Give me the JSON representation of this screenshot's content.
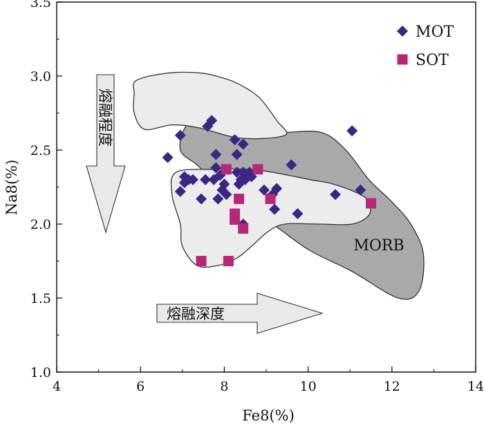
{
  "chart_data": {
    "type": "scatter",
    "title": "",
    "xlabel": "Fe8(%)",
    "ylabel": "Na8(%)",
    "xlim": [
      4,
      14
    ],
    "ylim": [
      1.0,
      3.5
    ],
    "xticks": [
      "4",
      "6",
      "8",
      "10",
      "12",
      "14"
    ],
    "yticks": [
      "1.0",
      "1.5",
      "2.0",
      "2.5",
      "3.0",
      "3.5"
    ],
    "grid": false,
    "legend_position": "top-right",
    "series": [
      {
        "name": "MOT",
        "marker": "diamond",
        "color": "#3b2585",
        "points": [
          [
            6.65,
            2.45
          ],
          [
            6.95,
            2.6
          ],
          [
            6.95,
            2.22
          ],
          [
            7.05,
            2.32
          ],
          [
            7.05,
            2.28
          ],
          [
            7.15,
            2.3
          ],
          [
            7.25,
            2.3
          ],
          [
            7.45,
            2.17
          ],
          [
            7.55,
            2.3
          ],
          [
            7.6,
            2.66
          ],
          [
            7.7,
            2.7
          ],
          [
            7.75,
            2.3
          ],
          [
            7.8,
            2.47
          ],
          [
            7.8,
            2.38
          ],
          [
            7.85,
            2.17
          ],
          [
            7.9,
            2.33
          ],
          [
            7.95,
            2.23
          ],
          [
            8.0,
            2.27
          ],
          [
            8.05,
            2.2
          ],
          [
            8.25,
            2.57
          ],
          [
            8.3,
            2.47
          ],
          [
            8.3,
            2.35
          ],
          [
            8.35,
            2.27
          ],
          [
            8.4,
            2.3
          ],
          [
            8.45,
            2.54
          ],
          [
            8.45,
            2.35
          ],
          [
            8.45,
            2.0
          ],
          [
            8.5,
            2.3
          ],
          [
            8.55,
            2.33
          ],
          [
            8.6,
            2.35
          ],
          [
            8.65,
            2.32
          ],
          [
            8.95,
            2.23
          ],
          [
            9.15,
            2.2
          ],
          [
            9.2,
            2.1
          ],
          [
            9.25,
            2.24
          ],
          [
            9.6,
            2.4
          ],
          [
            9.75,
            2.07
          ],
          [
            10.65,
            2.2
          ],
          [
            11.05,
            2.63
          ],
          [
            11.25,
            2.23
          ]
        ]
      },
      {
        "name": "SOT",
        "marker": "square",
        "color": "#b8267a",
        "points": [
          [
            7.45,
            1.75
          ],
          [
            8.05,
            2.37
          ],
          [
            8.1,
            1.75
          ],
          [
            8.25,
            2.07
          ],
          [
            8.25,
            2.03
          ],
          [
            8.35,
            2.17
          ],
          [
            8.45,
            1.97
          ],
          [
            8.8,
            2.37
          ],
          [
            9.1,
            2.17
          ],
          [
            11.5,
            2.14
          ]
        ]
      }
    ],
    "regions": [
      {
        "name": "MORB",
        "label": "MORB",
        "fill": "#a9a9a9",
        "polygon": [
          [
            6.95,
            2.5
          ],
          [
            7.1,
            2.67
          ],
          [
            7.6,
            2.77
          ],
          [
            8.6,
            2.66
          ],
          [
            9.3,
            2.62
          ],
          [
            10.3,
            2.62
          ],
          [
            10.9,
            2.5
          ],
          [
            11.45,
            2.3
          ],
          [
            12.0,
            2.15
          ],
          [
            12.45,
            2.0
          ],
          [
            12.75,
            1.8
          ],
          [
            12.65,
            1.55
          ],
          [
            12.15,
            1.5
          ],
          [
            11.05,
            1.68
          ],
          [
            10.05,
            1.82
          ],
          [
            9.25,
            1.98
          ],
          [
            8.6,
            2.1
          ],
          [
            7.8,
            2.28
          ],
          [
            7.35,
            2.4
          ]
        ]
      },
      {
        "name": "MOT",
        "fill": "#ececec",
        "polygon": [
          [
            5.9,
            2.97
          ],
          [
            6.65,
            3.02
          ],
          [
            7.45,
            3.02
          ],
          [
            8.05,
            2.98
          ],
          [
            8.45,
            2.93
          ],
          [
            8.85,
            2.85
          ],
          [
            9.25,
            2.7
          ],
          [
            9.45,
            2.6
          ],
          [
            8.4,
            2.58
          ],
          [
            7.4,
            2.65
          ],
          [
            6.75,
            2.67
          ],
          [
            6.1,
            2.64
          ],
          [
            5.85,
            2.75
          ],
          [
            5.85,
            2.88
          ]
        ]
      },
      {
        "name": "SOT",
        "fill": "#ececec",
        "polygon": [
          [
            6.85,
            2.35
          ],
          [
            7.75,
            2.37
          ],
          [
            8.55,
            2.37
          ],
          [
            9.15,
            2.35
          ],
          [
            10.05,
            2.3
          ],
          [
            10.6,
            2.27
          ],
          [
            11.25,
            2.2
          ],
          [
            11.45,
            2.14
          ],
          [
            11.45,
            2.06
          ],
          [
            11.05,
            2.0
          ],
          [
            10.25,
            2.0
          ],
          [
            9.45,
            2.0
          ],
          [
            9.05,
            1.95
          ],
          [
            8.65,
            1.85
          ],
          [
            8.3,
            1.77
          ],
          [
            7.85,
            1.72
          ],
          [
            7.35,
            1.72
          ],
          [
            7.0,
            1.85
          ],
          [
            6.95,
            2.0
          ],
          [
            6.75,
            2.2
          ]
        ]
      }
    ],
    "annotations": [
      {
        "text": "熔融程度",
        "direction": "down"
      },
      {
        "text": "熔融深度",
        "direction": "right"
      }
    ]
  }
}
